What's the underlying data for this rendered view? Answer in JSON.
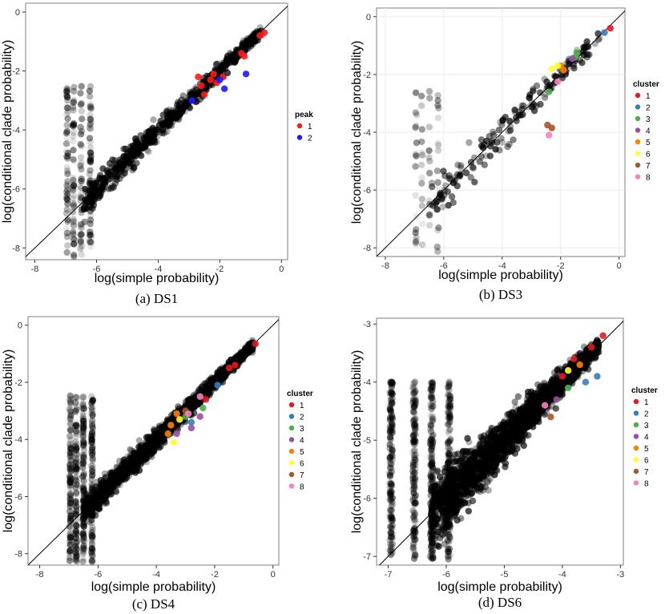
{
  "colors": {
    "points": "#000000",
    "diagonal": "#000000",
    "peak": [
      "#ff1a1a",
      "#1a1aff"
    ],
    "cluster": [
      "#e41a1c",
      "#377eb8",
      "#4daf4a",
      "#984ea3",
      "#ff7f00",
      "#ffff33",
      "#a65628",
      "#f781bf"
    ]
  },
  "chart_data": [
    {
      "type": "scatter",
      "caption": "(a) DS1",
      "xlabel": "log(simple probability)",
      "ylabel": "log(conditional clade probability)",
      "xlim": [
        -8.3,
        0.2
      ],
      "ylim": [
        -8.4,
        0.3
      ],
      "xticks": [
        -8,
        -6,
        -4,
        -2,
        0
      ],
      "yticks": [
        -8,
        -6,
        -4,
        -2,
        0
      ],
      "grid": false,
      "reference_line": "y = x",
      "legend": {
        "title": "peak",
        "position": "right",
        "labels": [
          "1",
          "2"
        ]
      },
      "background_density": "moderate",
      "highlighted": [
        {
          "name": "1",
          "color": "#ff1a1a",
          "points": [
            [
              -2.7,
              -2.2
            ],
            [
              -2.6,
              -2.5
            ],
            [
              -2.3,
              -2.3
            ],
            [
              -2.1,
              -2.4
            ],
            [
              -1.9,
              -2.2
            ],
            [
              -1.3,
              -1.4
            ],
            [
              -1.2,
              -1.5
            ],
            [
              -0.7,
              -0.8
            ],
            [
              -0.55,
              -0.7
            ],
            [
              -2.5,
              -2.8
            ],
            [
              -2.2,
              -2.1
            ]
          ]
        },
        {
          "name": "2",
          "color": "#1a1aff",
          "points": [
            [
              -2.9,
              -3.0
            ],
            [
              -2.0,
              -2.3
            ],
            [
              -1.85,
              -2.6
            ],
            [
              -1.15,
              -2.1
            ]
          ]
        }
      ]
    },
    {
      "type": "scatter",
      "caption": "(b) DS3",
      "xlabel": "log(simple probability)",
      "ylabel": "log(conditional clade probability)",
      "xlim": [
        -8.3,
        0.2
      ],
      "ylim": [
        -8.3,
        0.3
      ],
      "xticks": [
        -8,
        -6,
        -4,
        -2,
        0
      ],
      "yticks": [
        -8,
        -6,
        -4,
        -2,
        0
      ],
      "grid": true,
      "reference_line": "y = x",
      "legend": {
        "title": "cluster",
        "position": "right",
        "labels": [
          "1",
          "2",
          "3",
          "4",
          "5",
          "6",
          "7",
          "8"
        ]
      },
      "background_density": "sparse",
      "highlighted": [
        {
          "name": "1",
          "color": "#e41a1c",
          "points": [
            [
              -0.3,
              -0.4
            ]
          ]
        },
        {
          "name": "2",
          "color": "#377eb8",
          "points": [
            [
              -0.5,
              -0.55
            ]
          ]
        },
        {
          "name": "3",
          "color": "#4daf4a",
          "points": [
            [
              -1.45,
              -1.25
            ],
            [
              -1.5,
              -1.4
            ],
            [
              -2.4,
              -2.6
            ]
          ]
        },
        {
          "name": "4",
          "color": "#984ea3",
          "points": [
            [
              -1.6,
              -1.45
            ]
          ]
        },
        {
          "name": "5",
          "color": "#ff7f00",
          "points": [
            [
              -1.9,
              -1.85
            ],
            [
              -2.0,
              -1.7
            ]
          ]
        },
        {
          "name": "6",
          "color": "#ffff33",
          "points": [
            [
              -2.1,
              -1.7
            ],
            [
              -2.3,
              -1.8
            ]
          ]
        },
        {
          "name": "7",
          "color": "#a65628",
          "points": [
            [
              -2.45,
              -3.75
            ],
            [
              -2.3,
              -3.85
            ]
          ]
        },
        {
          "name": "8",
          "color": "#f781bf",
          "points": [
            [
              -2.4,
              -4.1
            ],
            [
              -2.1,
              -2.25
            ]
          ]
        }
      ]
    },
    {
      "type": "scatter",
      "caption": "(c) DS4",
      "xlabel": "log(simple probability)",
      "ylabel": "log(conditional clade probability)",
      "xlim": [
        -8.4,
        0.2
      ],
      "ylim": [
        -8.4,
        0.3
      ],
      "xticks": [
        -8,
        -6,
        -4,
        -2,
        0
      ],
      "yticks": [
        -8,
        -6,
        -4,
        -2,
        0
      ],
      "grid": false,
      "reference_line": "y = x",
      "legend": {
        "title": "cluster",
        "position": "right",
        "labels": [
          "1",
          "2",
          "3",
          "4",
          "5",
          "6",
          "7",
          "8"
        ]
      },
      "background_density": "dense",
      "highlighted": [
        {
          "name": "1",
          "color": "#e41a1c",
          "points": [
            [
              -0.6,
              -0.65
            ],
            [
              -1.3,
              -1.4
            ],
            [
              -1.5,
              -1.5
            ],
            [
              -2.3,
              -2.6
            ]
          ]
        },
        {
          "name": "2",
          "color": "#377eb8",
          "points": [
            [
              -1.9,
              -2.1
            ],
            [
              -2.8,
              -3.4
            ]
          ]
        },
        {
          "name": "3",
          "color": "#4daf4a",
          "points": [
            [
              -2.4,
              -2.9
            ],
            [
              -3.0,
              -3.2
            ]
          ]
        },
        {
          "name": "4",
          "color": "#984ea3",
          "points": [
            [
              -2.5,
              -3.2
            ],
            [
              -2.8,
              -3.6
            ],
            [
              -3.3,
              -3.8
            ]
          ]
        },
        {
          "name": "5",
          "color": "#ff7f00",
          "points": [
            [
              -3.3,
              -3.1
            ],
            [
              -3.5,
              -3.5
            ],
            [
              -3.6,
              -3.8
            ]
          ]
        },
        {
          "name": "6",
          "color": "#ffff33",
          "points": [
            [
              -3.4,
              -4.1
            ],
            [
              -3.2,
              -3.3
            ]
          ]
        },
        {
          "name": "7",
          "color": "#a65628",
          "points": [
            [
              -3.0,
              -3.0
            ]
          ]
        },
        {
          "name": "8",
          "color": "#f781bf",
          "points": [
            [
              -2.5,
              -2.5
            ],
            [
              -2.9,
              -3.1
            ]
          ]
        }
      ]
    },
    {
      "type": "scatter",
      "caption": "(d) DS6",
      "xlabel": "log(simple probability)",
      "ylabel": "log(conditional clade probability)",
      "xlim": [
        -7.2,
        -2.95
      ],
      "ylim": [
        -7.15,
        -2.9
      ],
      "xticks": [
        -7,
        -6,
        -5,
        -4,
        -3
      ],
      "yticks": [
        -7,
        -6,
        -5,
        -4,
        -3
      ],
      "grid": false,
      "reference_line": "y = x",
      "legend": {
        "title": "cluster",
        "position": "right",
        "labels": [
          "1",
          "2",
          "3",
          "4",
          "5",
          "6",
          "7",
          "8"
        ]
      },
      "background_density": "saturated",
      "highlighted": [
        {
          "name": "1",
          "color": "#e41a1c",
          "points": [
            [
              -3.3,
              -3.2
            ],
            [
              -3.5,
              -3.4
            ],
            [
              -3.8,
              -3.6
            ],
            [
              -4.0,
              -3.9
            ]
          ]
        },
        {
          "name": "2",
          "color": "#377eb8",
          "points": [
            [
              -3.4,
              -3.9
            ],
            [
              -3.6,
              -4.0
            ]
          ]
        },
        {
          "name": "3",
          "color": "#4daf4a",
          "points": [
            [
              -3.9,
              -4.1
            ]
          ]
        },
        {
          "name": "4",
          "color": "#984ea3",
          "points": [
            [
              -4.1,
              -4.3
            ]
          ]
        },
        {
          "name": "5",
          "color": "#ff7f00",
          "points": [
            [
              -3.7,
              -3.7
            ]
          ]
        },
        {
          "name": "6",
          "color": "#ffff33",
          "points": [
            [
              -3.9,
              -3.8
            ]
          ]
        },
        {
          "name": "7",
          "color": "#a65628",
          "points": [
            [
              -4.2,
              -4.6
            ]
          ]
        },
        {
          "name": "8",
          "color": "#f781bf",
          "points": [
            [
              -4.3,
              -4.4
            ]
          ]
        }
      ]
    }
  ]
}
